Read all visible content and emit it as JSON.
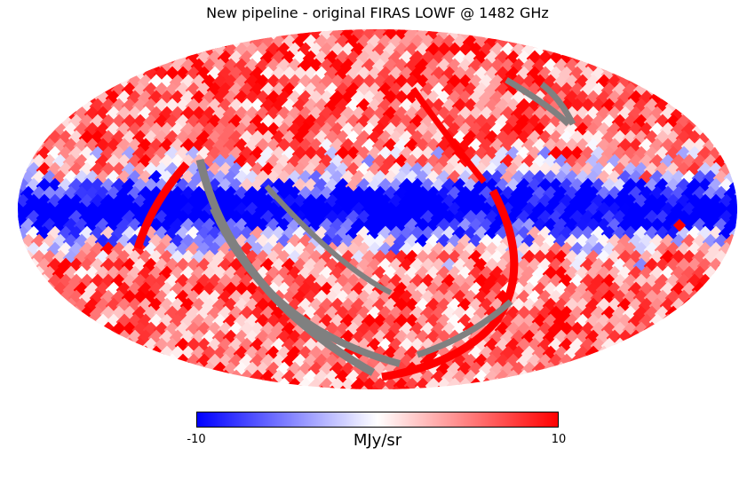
{
  "title": "New pipeline - original FIRAS LOWF @ 1482 GHz",
  "colorbar": {
    "min_label": "-10",
    "max_label": "10",
    "unit": "MJy/sr",
    "colors": [
      "#0000ff",
      "#ffffff",
      "#ff0000"
    ]
  },
  "map": {
    "projection": "Mollweide",
    "missing_color": "#808080",
    "range": [
      -10,
      10
    ]
  }
}
